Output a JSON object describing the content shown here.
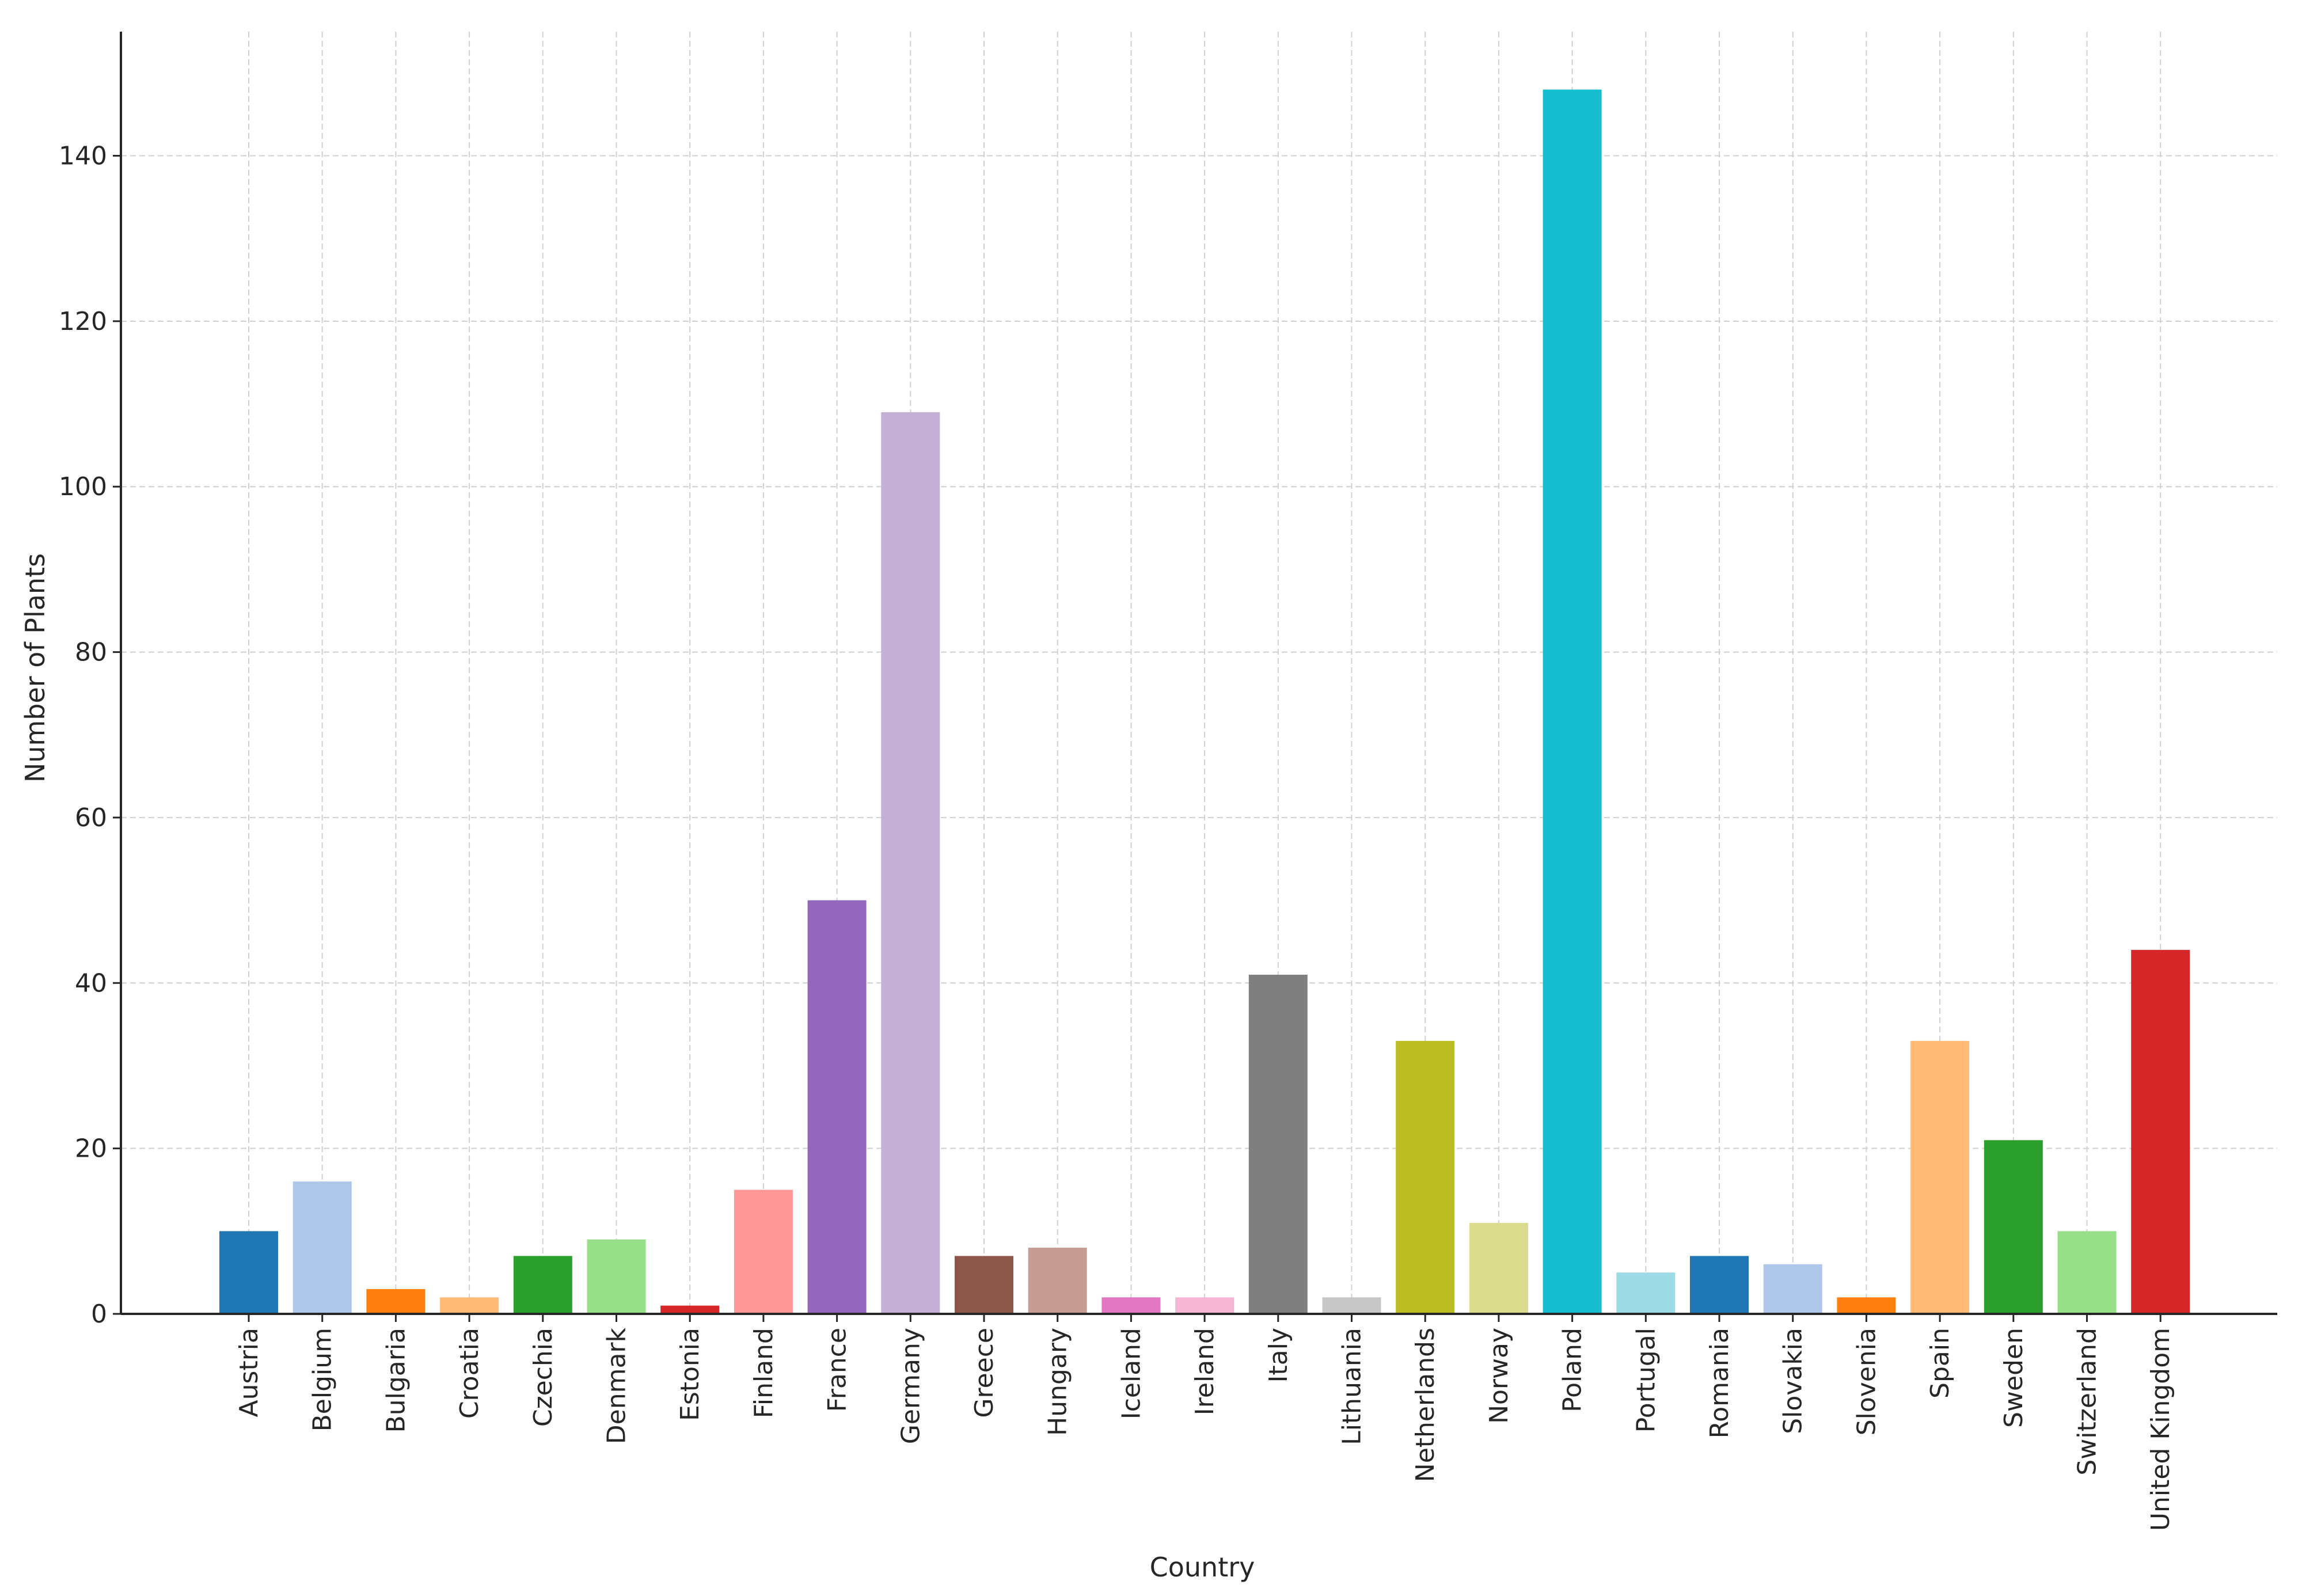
{
  "chart_data": {
    "type": "bar",
    "title": "",
    "xlabel": "Country",
    "ylabel": "Number of Plants",
    "ylim": [
      0,
      155
    ],
    "yticks": [
      0,
      20,
      40,
      60,
      80,
      100,
      120,
      140
    ],
    "grid": true,
    "categories": [
      "Austria",
      "Belgium",
      "Bulgaria",
      "Croatia",
      "Czechia",
      "Denmark",
      "Estonia",
      "Finland",
      "France",
      "Germany",
      "Greece",
      "Hungary",
      "Iceland",
      "Ireland",
      "Italy",
      "Lithuania",
      "Netherlands",
      "Norway",
      "Poland",
      "Portugal",
      "Romania",
      "Slovakia",
      "Slovenia",
      "Spain",
      "Sweden",
      "Switzerland",
      "United Kingdom"
    ],
    "values": [
      10,
      16,
      3,
      2,
      7,
      9,
      1,
      15,
      50,
      109,
      7,
      8,
      2,
      2,
      41,
      2,
      33,
      11,
      148,
      5,
      7,
      6,
      2,
      33,
      21,
      10,
      44
    ],
    "colors": [
      "#1f77b4",
      "#aec7e8",
      "#ff7f0e",
      "#ffbb78",
      "#2ca02c",
      "#98df8a",
      "#d62728",
      "#ff9896",
      "#9467bd",
      "#c5b0d5",
      "#8c564b",
      "#c49c94",
      "#e377c2",
      "#f7b6d2",
      "#7f7f7f",
      "#c7c7c7",
      "#bcbd22",
      "#dbdb8d",
      "#17becf",
      "#9edae5",
      "#1f77b4",
      "#aec7e8",
      "#ff7f0e",
      "#ffbb78",
      "#2ca02c",
      "#98df8a",
      "#d62728"
    ]
  }
}
